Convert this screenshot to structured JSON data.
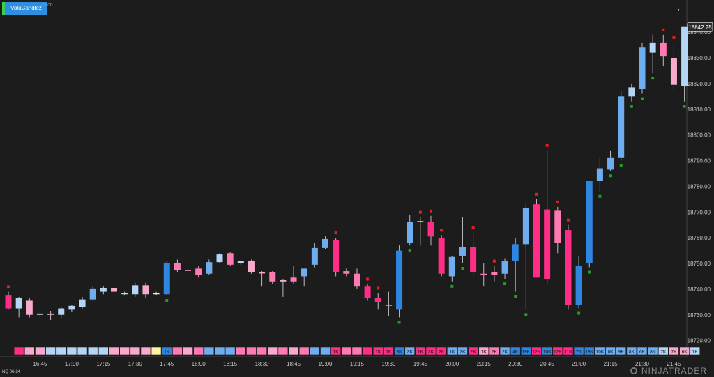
{
  "indicator": {
    "name": "VoluCandlez"
  },
  "watermark": "Za.co",
  "instrument": "NQ 06-24",
  "logo": "NINJATRADER",
  "price_marker": "18842.25",
  "colors": {
    "background": "#1c1c1c",
    "up_strong": "#2e86e0",
    "up_mid": "#6eaef0",
    "up_light": "#b5d5f5",
    "down_strong": "#ff2d86",
    "down_mid": "#ff79b2",
    "down_light": "#f7aacb",
    "neutral": "#fff5a0",
    "signal_sell": "#e02020",
    "signal_buy": "#20a020",
    "axis_text": "#c8c8c8",
    "marker_bg": "#2a2a2a"
  },
  "chart_data": {
    "type": "candlestick",
    "ylim": [
      18718,
      18846
    ],
    "yticks": [
      18720,
      18730,
      18740,
      18750,
      18760,
      18770,
      18780,
      18790,
      18800,
      18810,
      18820,
      18830,
      18840
    ],
    "ytick_labels": [
      "18720.00",
      "18730.00",
      "18740.00",
      "18750.00",
      "18760.00",
      "18770.00",
      "18780.00",
      "18790.00",
      "18800.00",
      "18810.00",
      "18820.00",
      "18830.00",
      "18840.00"
    ],
    "xticks": [
      {
        "label": "16:45",
        "index": 3
      },
      {
        "label": "17:00",
        "index": 6
      },
      {
        "label": "17:15",
        "index": 9
      },
      {
        "label": "17:30",
        "index": 12
      },
      {
        "label": "17:45",
        "index": 15
      },
      {
        "label": "18:00",
        "index": 18
      },
      {
        "label": "18:15",
        "index": 21
      },
      {
        "label": "18:30",
        "index": 24
      },
      {
        "label": "18:45",
        "index": 27
      },
      {
        "label": "19:00",
        "index": 30
      },
      {
        "label": "19:15",
        "index": 33
      },
      {
        "label": "19:30",
        "index": 36
      },
      {
        "label": "19:45",
        "index": 39
      },
      {
        "label": "20:00",
        "index": 42
      },
      {
        "label": "20:15",
        "index": 45
      },
      {
        "label": "20:30",
        "index": 48
      },
      {
        "label": "20:45",
        "index": 51
      },
      {
        "label": "21:00",
        "index": 54
      },
      {
        "label": "21:15",
        "index": 57
      },
      {
        "label": "21:30",
        "index": 60
      },
      {
        "label": "21:45",
        "index": 63
      }
    ],
    "candles": [
      {
        "o": 18737.5,
        "h": 18739,
        "l": 18732,
        "c": 18732.5,
        "tone": "down_strong",
        "signal": "sell"
      },
      {
        "o": 18732.5,
        "h": 18737,
        "l": 18729,
        "c": 18736.5,
        "tone": "up_light"
      },
      {
        "o": 18735.5,
        "h": 18736.5,
        "l": 18729,
        "c": 18730,
        "tone": "down_light"
      },
      {
        "o": 18730,
        "h": 18731,
        "l": 18729,
        "c": 18730.5,
        "tone": "up_light"
      },
      {
        "o": 18730.5,
        "h": 18731.5,
        "l": 18728,
        "c": 18730,
        "tone": "down_light"
      },
      {
        "o": 18730,
        "h": 18733,
        "l": 18728.5,
        "c": 18732.5,
        "tone": "up_light"
      },
      {
        "o": 18732,
        "h": 18734,
        "l": 18731,
        "c": 18733.5,
        "tone": "up_light"
      },
      {
        "o": 18733,
        "h": 18737,
        "l": 18732.5,
        "c": 18736,
        "tone": "up_light"
      },
      {
        "o": 18736,
        "h": 18741,
        "l": 18735.5,
        "c": 18740,
        "tone": "up_mid"
      },
      {
        "o": 18739,
        "h": 18741,
        "l": 18738,
        "c": 18740.5,
        "tone": "up_light"
      },
      {
        "o": 18740.5,
        "h": 18741,
        "l": 18738,
        "c": 18739,
        "tone": "down_light"
      },
      {
        "o": 18738,
        "h": 18739,
        "l": 18737.5,
        "c": 18738.5,
        "tone": "up_light"
      },
      {
        "o": 18738,
        "h": 18742.5,
        "l": 18737,
        "c": 18741.5,
        "tone": "up_light"
      },
      {
        "o": 18741.5,
        "h": 18742.5,
        "l": 18736.5,
        "c": 18738,
        "tone": "down_light"
      },
      {
        "o": 18738,
        "h": 18739,
        "l": 18737.5,
        "c": 18738.5,
        "tone": "neutral"
      },
      {
        "o": 18738,
        "h": 18751,
        "l": 18737.5,
        "c": 18750,
        "tone": "up_strong",
        "signal": "buy"
      },
      {
        "o": 18750,
        "h": 18751.5,
        "l": 18746.5,
        "c": 18747.5,
        "tone": "down_mid"
      },
      {
        "o": 18747.5,
        "h": 18748,
        "l": 18747,
        "c": 18747.5,
        "tone": "down_light"
      },
      {
        "o": 18748,
        "h": 18749,
        "l": 18744.5,
        "c": 18745.5,
        "tone": "down_mid"
      },
      {
        "o": 18746,
        "h": 18751.5,
        "l": 18745.5,
        "c": 18750.5,
        "tone": "up_mid"
      },
      {
        "o": 18750.5,
        "h": 18754,
        "l": 18750,
        "c": 18753.5,
        "tone": "up_light"
      },
      {
        "o": 18754,
        "h": 18754.5,
        "l": 18749,
        "c": 18749.5,
        "tone": "down_mid"
      },
      {
        "o": 18750,
        "h": 18751,
        "l": 18749.5,
        "c": 18751,
        "tone": "up_light"
      },
      {
        "o": 18751,
        "h": 18751.5,
        "l": 18746,
        "c": 18746.5,
        "tone": "down_light"
      },
      {
        "o": 18746.5,
        "h": 18747,
        "l": 18741,
        "c": 18746.5,
        "tone": "down_light"
      },
      {
        "o": 18746.5,
        "h": 18747,
        "l": 18742,
        "c": 18743,
        "tone": "down_mid"
      },
      {
        "o": 18743,
        "h": 18744,
        "l": 18737,
        "c": 18743.5,
        "tone": "down_light"
      },
      {
        "o": 18743,
        "h": 18749,
        "l": 18742,
        "c": 18744.5,
        "tone": "down_mid"
      },
      {
        "o": 18745,
        "h": 18748,
        "l": 18741,
        "c": 18748,
        "tone": "up_mid"
      },
      {
        "o": 18749.5,
        "h": 18758,
        "l": 18748.5,
        "c": 18756,
        "tone": "up_mid"
      },
      {
        "o": 18756,
        "h": 18760.5,
        "l": 18755.5,
        "c": 18759.5,
        "tone": "up_mid"
      },
      {
        "o": 18759,
        "h": 18760,
        "l": 18745,
        "c": 18746.5,
        "tone": "down_strong",
        "signal": "sell"
      },
      {
        "o": 18747,
        "h": 18748,
        "l": 18745,
        "c": 18746,
        "tone": "down_mid"
      },
      {
        "o": 18746,
        "h": 18748,
        "l": 18740,
        "c": 18741,
        "tone": "down_mid"
      },
      {
        "o": 18741,
        "h": 18742,
        "l": 18735.5,
        "c": 18736.5,
        "tone": "down_strong",
        "signal": "sell"
      },
      {
        "o": 18736.5,
        "h": 18738.5,
        "l": 18732,
        "c": 18735,
        "tone": "down_strong",
        "signal": "sell"
      },
      {
        "o": 18734,
        "h": 18739,
        "l": 18729.5,
        "c": 18733.5,
        "tone": "down_mid"
      },
      {
        "o": 18732,
        "h": 18757,
        "l": 18729,
        "c": 18755,
        "tone": "up_strong",
        "signal": "buy"
      },
      {
        "o": 18758,
        "h": 18769,
        "l": 18757,
        "c": 18766,
        "tone": "up_mid",
        "signal": "buy"
      },
      {
        "o": 18766.5,
        "h": 18768,
        "l": 18757,
        "c": 18766,
        "tone": "down_light",
        "signal": "sell"
      },
      {
        "o": 18766,
        "h": 18768.5,
        "l": 18757,
        "c": 18760.5,
        "tone": "down_strong",
        "signal": "sell"
      },
      {
        "o": 18760,
        "h": 18761,
        "l": 18745,
        "c": 18746,
        "tone": "down_strong",
        "signal": "sell"
      },
      {
        "o": 18745,
        "h": 18753,
        "l": 18743,
        "c": 18752.5,
        "tone": "up_mid",
        "signal": "buy"
      },
      {
        "o": 18753,
        "h": 18768,
        "l": 18750,
        "c": 18756.5,
        "tone": "up_mid",
        "signal": "buy"
      },
      {
        "o": 18756.5,
        "h": 18762,
        "l": 18745,
        "c": 18746.5,
        "tone": "down_strong",
        "signal": "sell"
      },
      {
        "o": 18746,
        "h": 18750,
        "l": 18741,
        "c": 18746,
        "tone": "down_mid"
      },
      {
        "o": 18746.5,
        "h": 18749,
        "l": 18743,
        "c": 18745.5,
        "tone": "down_mid",
        "signal": "sell"
      },
      {
        "o": 18746,
        "h": 18752,
        "l": 18744,
        "c": 18751,
        "tone": "up_mid",
        "signal": "buy"
      },
      {
        "o": 18751,
        "h": 18760,
        "l": 18739,
        "c": 18757.5,
        "tone": "up_strong",
        "signal": "buy"
      },
      {
        "o": 18757.5,
        "h": 18773.5,
        "l": 18732,
        "c": 18771.5,
        "tone": "up_mid",
        "signal": "buy"
      },
      {
        "o": 18773,
        "h": 18775,
        "l": 18744.5,
        "c": 18744.5,
        "tone": "down_strong",
        "signal": "sell"
      },
      {
        "o": 18771,
        "h": 18794,
        "l": 18742,
        "c": 18744,
        "tone": "down_strong",
        "signal": "sell"
      },
      {
        "o": 18770.5,
        "h": 18772,
        "l": 18754,
        "c": 18758,
        "tone": "down_mid",
        "signal": "sell"
      },
      {
        "o": 18763,
        "h": 18765,
        "l": 18732,
        "c": 18734,
        "tone": "down_strong",
        "signal": "sell"
      },
      {
        "o": 18734,
        "h": 18753,
        "l": 18732.5,
        "c": 18749,
        "tone": "up_strong",
        "signal": "buy"
      },
      {
        "o": 18750,
        "h": 18782,
        "l": 18748.5,
        "c": 18782,
        "tone": "up_strong",
        "signal": "buy"
      },
      {
        "o": 18782,
        "h": 18791,
        "l": 18778,
        "c": 18787,
        "tone": "up_mid",
        "signal": "buy"
      },
      {
        "o": 18786.5,
        "h": 18794,
        "l": 18786,
        "c": 18791,
        "tone": "up_mid",
        "signal": "buy"
      },
      {
        "o": 18791,
        "h": 18817,
        "l": 18790,
        "c": 18815,
        "tone": "up_mid",
        "signal": "buy"
      },
      {
        "o": 18815,
        "h": 18820,
        "l": 18813,
        "c": 18818.5,
        "tone": "up_light",
        "signal": "buy"
      },
      {
        "o": 18818,
        "h": 18836,
        "l": 18816,
        "c": 18834,
        "tone": "up_mid",
        "signal": "buy"
      },
      {
        "o": 18832,
        "h": 18839,
        "l": 18824,
        "c": 18836,
        "tone": "up_light",
        "signal": "buy"
      },
      {
        "o": 18836,
        "h": 18839,
        "l": 18827,
        "c": 18830.5,
        "tone": "down_mid",
        "signal": "sell"
      },
      {
        "o": 18830,
        "h": 18836,
        "l": 18817,
        "c": 18819.5,
        "tone": "down_light",
        "signal": "sell"
      },
      {
        "o": 18819,
        "h": 18842,
        "l": 18813,
        "c": 18842,
        "tone": "up_light",
        "signal": "buy"
      }
    ],
    "volume_strip": [
      {
        "label": "",
        "tone": "down_strong"
      },
      {
        "label": "",
        "tone": "down_light"
      },
      {
        "label": "",
        "tone": "down_light"
      },
      {
        "label": "",
        "tone": "up_light"
      },
      {
        "label": "",
        "tone": "up_light"
      },
      {
        "label": "",
        "tone": "up_light"
      },
      {
        "label": "",
        "tone": "up_light"
      },
      {
        "label": "",
        "tone": "up_light"
      },
      {
        "label": "",
        "tone": "up_light"
      },
      {
        "label": "",
        "tone": "down_light"
      },
      {
        "label": "",
        "tone": "down_light"
      },
      {
        "label": "",
        "tone": "down_light"
      },
      {
        "label": "",
        "tone": "down_light"
      },
      {
        "label": "",
        "tone": "neutral"
      },
      {
        "label": "1K",
        "tone": "up_strong"
      },
      {
        "label": "",
        "tone": "down_mid"
      },
      {
        "label": "",
        "tone": "down_light"
      },
      {
        "label": "",
        "tone": "down_mid"
      },
      {
        "label": "",
        "tone": "up_mid"
      },
      {
        "label": "",
        "tone": "up_mid"
      },
      {
        "label": "",
        "tone": "up_mid"
      },
      {
        "label": "",
        "tone": "down_mid"
      },
      {
        "label": "",
        "tone": "down_mid"
      },
      {
        "label": "",
        "tone": "down_mid"
      },
      {
        "label": "",
        "tone": "down_light"
      },
      {
        "label": "",
        "tone": "down_mid"
      },
      {
        "label": "",
        "tone": "down_light"
      },
      {
        "label": "",
        "tone": "down_mid"
      },
      {
        "label": "",
        "tone": "up_mid"
      },
      {
        "label": "",
        "tone": "up_mid"
      },
      {
        "label": "1K",
        "tone": "down_strong"
      },
      {
        "label": "",
        "tone": "down_mid"
      },
      {
        "label": "",
        "tone": "down_mid"
      },
      {
        "label": "",
        "tone": "down_strong"
      },
      {
        "label": "1K",
        "tone": "down_strong"
      },
      {
        "label": "1K",
        "tone": "down_strong"
      },
      {
        "label": "3K",
        "tone": "up_strong"
      },
      {
        "label": "3K",
        "tone": "up_mid"
      },
      {
        "label": "1K",
        "tone": "down_strong"
      },
      {
        "label": "3K",
        "tone": "down_strong"
      },
      {
        "label": "2K",
        "tone": "down_strong"
      },
      {
        "label": "1K",
        "tone": "up_mid"
      },
      {
        "label": "2K",
        "tone": "up_mid"
      },
      {
        "label": "2K",
        "tone": "down_strong"
      },
      {
        "label": "1K",
        "tone": "down_light"
      },
      {
        "label": "2K",
        "tone": "down_mid"
      },
      {
        "label": "2K",
        "tone": "up_mid"
      },
      {
        "label": "4K",
        "tone": "up_strong"
      },
      {
        "label": "19K",
        "tone": "up_strong"
      },
      {
        "label": "12K",
        "tone": "down_strong"
      },
      {
        "label": "10K",
        "tone": "up_strong"
      },
      {
        "label": "12K",
        "tone": "down_strong"
      },
      {
        "label": "11K",
        "tone": "down_strong"
      },
      {
        "label": "7K",
        "tone": "up_strong"
      },
      {
        "label": "18K",
        "tone": "up_strong"
      },
      {
        "label": "10K",
        "tone": "up_mid"
      },
      {
        "label": "8K",
        "tone": "up_mid"
      },
      {
        "label": "9K",
        "tone": "up_mid"
      },
      {
        "label": "8K",
        "tone": "up_mid"
      },
      {
        "label": "6K",
        "tone": "up_mid"
      },
      {
        "label": "8K",
        "tone": "up_mid"
      },
      {
        "label": "7K",
        "tone": "up_light"
      },
      {
        "label": "7K",
        "tone": "down_light"
      },
      {
        "label": "6K",
        "tone": "down_light"
      },
      {
        "label": "7K",
        "tone": "up_light"
      }
    ]
  }
}
